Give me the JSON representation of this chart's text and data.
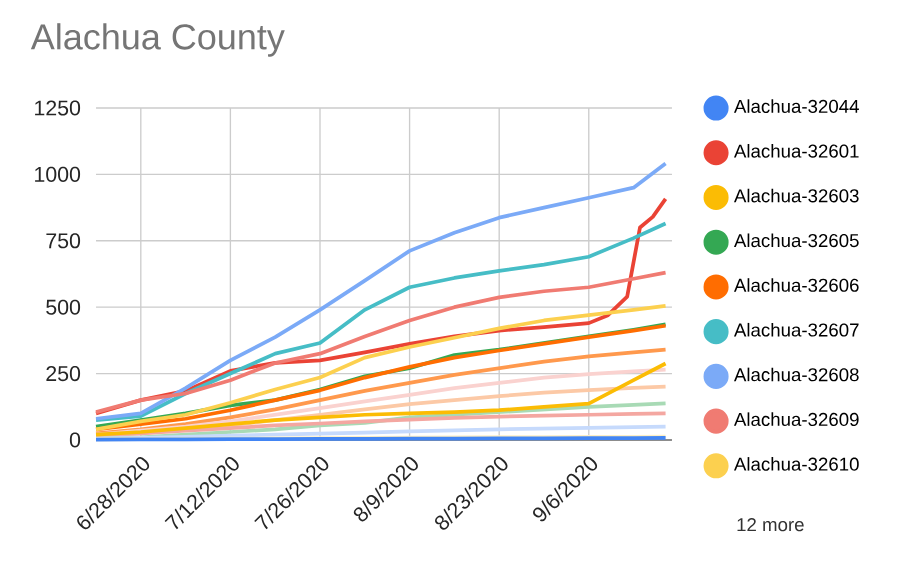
{
  "chart_data": {
    "type": "line",
    "title": "Alachua County",
    "x": [
      "2020-06-21",
      "2020-06-28",
      "2020-07-05",
      "2020-07-12",
      "2020-07-19",
      "2020-07-26",
      "2020-08-02",
      "2020-08-09",
      "2020-08-16",
      "2020-08-23",
      "2020-08-30",
      "2020-09-06",
      "2020-09-13",
      "2020-09-18"
    ],
    "xlim": [
      "2020-06-21",
      "2020-09-19"
    ],
    "xticks": [
      {
        "value": "2020-06-28",
        "label": "6/28/2020"
      },
      {
        "value": "2020-07-12",
        "label": "7/12/2020"
      },
      {
        "value": "2020-07-26",
        "label": "7/26/2020"
      },
      {
        "value": "2020-08-09",
        "label": "8/9/2020"
      },
      {
        "value": "2020-08-23",
        "label": "8/23/2020"
      },
      {
        "value": "2020-09-06",
        "label": "9/6/2020"
      }
    ],
    "ylim": [
      0,
      1250
    ],
    "yticks": [
      0,
      250,
      500,
      750,
      1000,
      1250
    ],
    "grid": true,
    "legend": "right",
    "annotations": [
      "12 more"
    ],
    "series": [
      {
        "color": "#ff994d",
        "values": [
          25,
          40,
          60,
          85,
          115,
          150,
          185,
          215,
          245,
          270,
          295,
          315,
          330,
          340
        ]
      },
      {
        "color": "#fad2cf",
        "values": [
          20,
          35,
          50,
          70,
          95,
          120,
          145,
          170,
          195,
          215,
          235,
          248,
          258,
          265
        ]
      },
      {
        "color": "#fcc9a6",
        "values": [
          15,
          25,
          40,
          55,
          75,
          95,
          115,
          135,
          150,
          165,
          178,
          188,
          196,
          201
        ]
      },
      {
        "color": "#a8dab5",
        "values": [
          5,
          10,
          20,
          30,
          40,
          55,
          64,
          85,
          95,
          105,
          115,
          125,
          132,
          138
        ]
      },
      {
        "color": "#f4a7a1",
        "values": [
          20,
          25,
          35,
          45,
          55,
          62,
          70,
          77,
          83,
          88,
          92,
          95,
          98,
          100
        ]
      },
      {
        "color": "#c6dafc",
        "values": [
          5,
          8,
          12,
          16,
          20,
          24,
          28,
          32,
          36,
          40,
          43,
          46,
          48,
          50
        ]
      },
      {
        "color": "#feefc3",
        "values": [
          2,
          3,
          4,
          5,
          6,
          7,
          8,
          9,
          10,
          11,
          11,
          12,
          12,
          13
        ]
      },
      {
        "name": "Alachua-32044",
        "color": "#4285f4",
        "values": [
          1,
          2,
          2,
          3,
          3,
          4,
          4,
          5,
          5,
          6,
          6,
          7,
          7,
          8
        ]
      },
      {
        "name": "Alachua-32601",
        "color": "#ea4335",
        "x": [
          "2020-06-21",
          "2020-06-28",
          "2020-07-05",
          "2020-07-12",
          "2020-07-19",
          "2020-07-26",
          "2020-08-02",
          "2020-08-09",
          "2020-08-16",
          "2020-08-23",
          "2020-08-30",
          "2020-09-06",
          "2020-09-09",
          "2020-09-12",
          "2020-09-14",
          "2020-09-16",
          "2020-09-18"
        ],
        "values": [
          100,
          150,
          185,
          260,
          290,
          300,
          330,
          362,
          390,
          412,
          425,
          440,
          470,
          540,
          800,
          840,
          908
        ]
      },
      {
        "name": "Alachua-32603",
        "color": "#fbbc04",
        "values": [
          20,
          30,
          45,
          60,
          75,
          85,
          95,
          100,
          105,
          112,
          125,
          137,
          225,
          288
        ]
      },
      {
        "name": "Alachua-32605",
        "color": "#34a853",
        "values": [
          50,
          75,
          100,
          130,
          150,
          190,
          240,
          270,
          320,
          340,
          365,
          390,
          415,
          435
        ]
      },
      {
        "name": "Alachua-32606",
        "color": "#ff6d01",
        "values": [
          40,
          60,
          80,
          112,
          150,
          187,
          235,
          275,
          310,
          337,
          362,
          387,
          412,
          430
        ]
      },
      {
        "name": "Alachua-32607",
        "color": "#46bdc6",
        "values": [
          75,
          90,
          175,
          250,
          325,
          365,
          490,
          575,
          610,
          637,
          660,
          690,
          760,
          815
        ]
      },
      {
        "name": "Alachua-32608",
        "color": "#7baaf7",
        "values": [
          80,
          100,
          195,
          300,
          387,
          490,
          600,
          712,
          780,
          837,
          875,
          912,
          950,
          1041
        ]
      },
      {
        "name": "Alachua-32609",
        "color": "#f07b72",
        "values": [
          105,
          150,
          175,
          225,
          290,
          325,
          390,
          450,
          500,
          537,
          560,
          575,
          607,
          630
        ]
      },
      {
        "name": "Alachua-32610",
        "color": "#fcd04f",
        "values": [
          40,
          70,
          95,
          140,
          190,
          235,
          310,
          350,
          385,
          420,
          450,
          470,
          490,
          505
        ]
      }
    ]
  }
}
